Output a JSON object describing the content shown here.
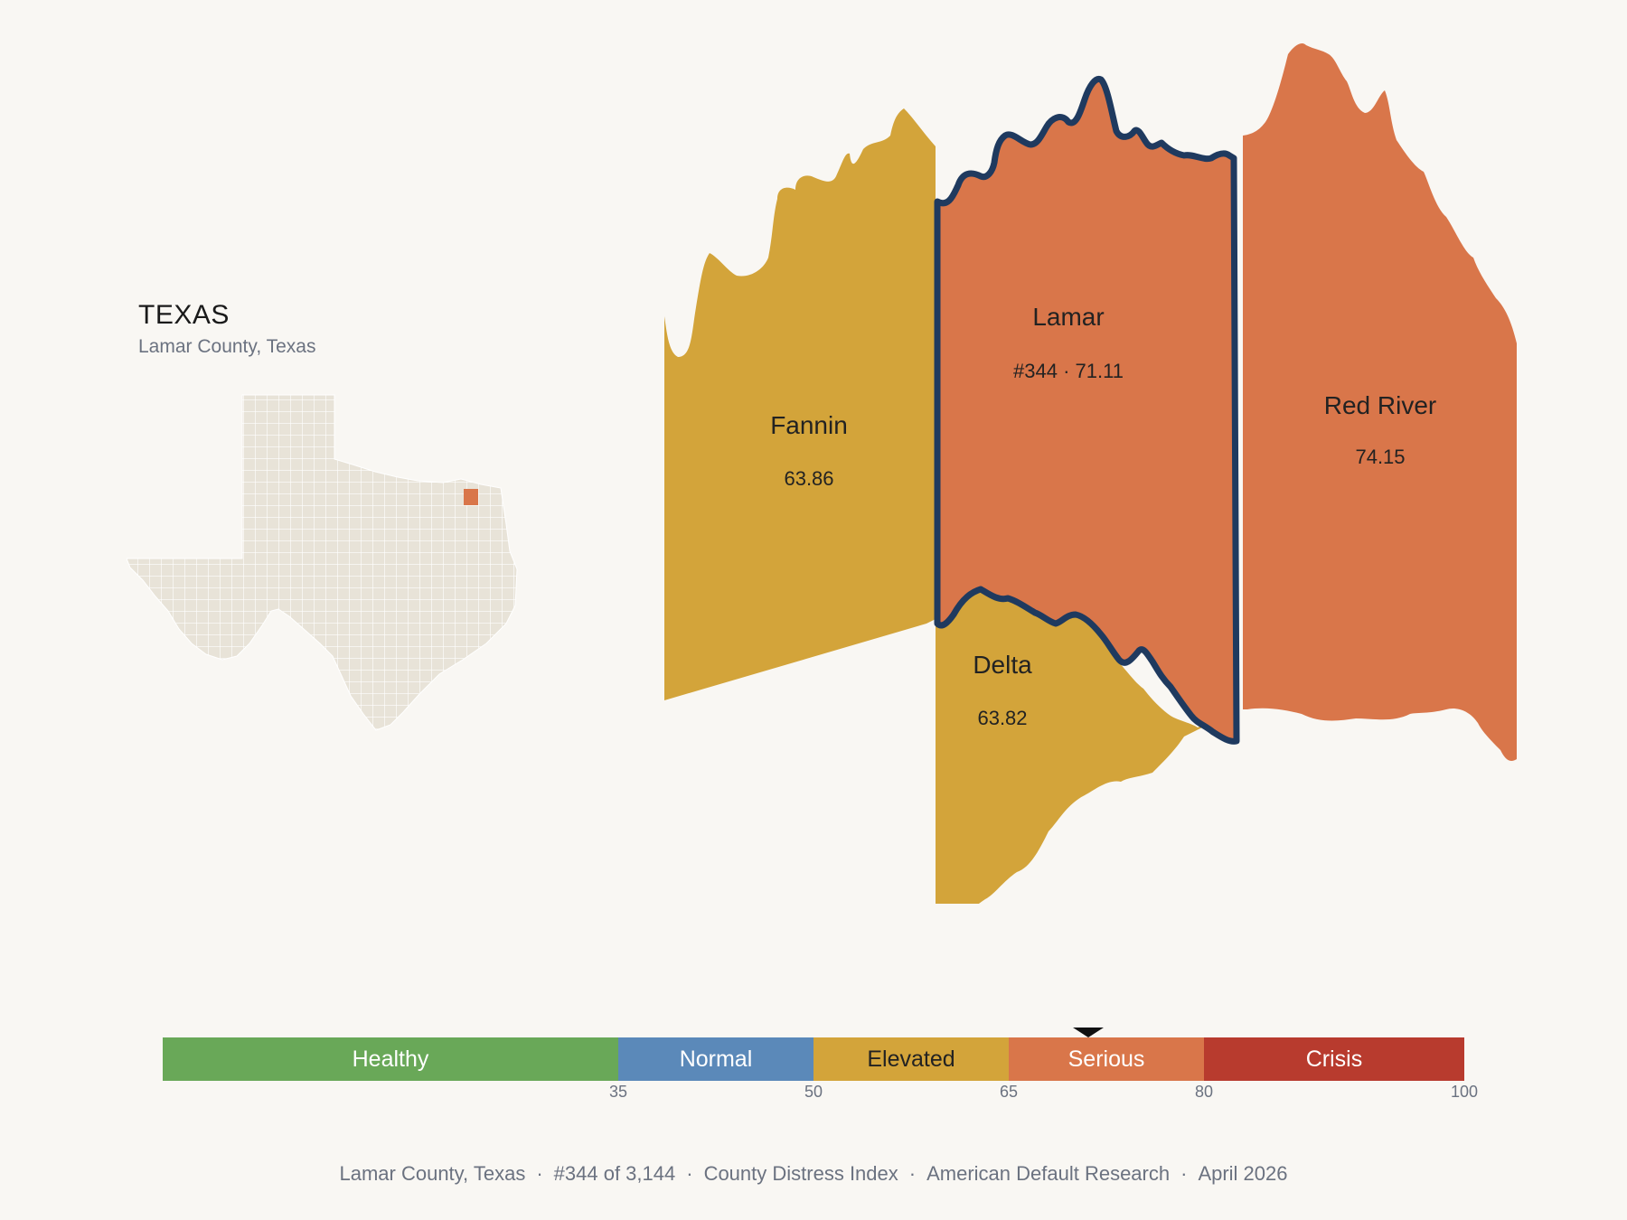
{
  "inset": {
    "title": "TEXAS",
    "subtitle": "Lamar County, Texas"
  },
  "counties": [
    {
      "name": "Fannin",
      "score": "63.86",
      "category": "Elevated",
      "color": "#d3a43a"
    },
    {
      "name": "Lamar",
      "score": "#344 · 71.11",
      "category": "Serious",
      "color": "#d9764a",
      "highlighted": true
    },
    {
      "name": "Red River",
      "score": "74.15",
      "category": "Serious",
      "color": "#d9764a"
    },
    {
      "name": "Delta",
      "score": "63.82",
      "category": "Elevated",
      "color": "#d3a43a"
    }
  ],
  "scale": {
    "min": 0,
    "max": 100,
    "marker_value": 71.11,
    "segments": [
      {
        "label": "Healthy",
        "from": 0,
        "to": 35,
        "color": "#69a858"
      },
      {
        "label": "Normal",
        "from": 35,
        "to": 50,
        "color": "#5b89b9"
      },
      {
        "label": "Elevated",
        "from": 50,
        "to": 65,
        "color": "#d3a43a"
      },
      {
        "label": "Serious",
        "from": 65,
        "to": 80,
        "color": "#d9764a"
      },
      {
        "label": "Crisis",
        "from": 80,
        "to": 100,
        "color": "#b83b2e"
      }
    ],
    "ticks": [
      "35",
      "50",
      "65",
      "80",
      "100"
    ]
  },
  "footer": {
    "county": "Lamar County, Texas",
    "rank": "#344 of 3,144",
    "index": "County Distress Index",
    "source": "American Default Research",
    "date": "April 2026"
  }
}
